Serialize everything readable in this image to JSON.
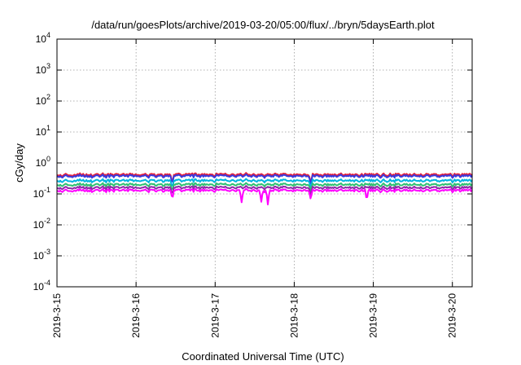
{
  "chart_data": {
    "type": "line",
    "title": "/data/run/goesPlots/archive/2019-03-20/05:00/flux/../bryn/5daysEarth.plot",
    "xlabel": "Coordinated Universal Time (UTC)",
    "ylabel": "cGy/day",
    "y_scale": "log",
    "ylim": [
      0.0001,
      10000
    ],
    "y_ticks": [
      {
        "base": "10",
        "exp": "-4",
        "value": 0.0001
      },
      {
        "base": "10",
        "exp": "-3",
        "value": 0.001
      },
      {
        "base": "10",
        "exp": "-2",
        "value": 0.01
      },
      {
        "base": "10",
        "exp": "-1",
        "value": 0.1
      },
      {
        "base": "10",
        "exp": "0",
        "value": 1
      },
      {
        "base": "10",
        "exp": "1",
        "value": 10
      },
      {
        "base": "10",
        "exp": "2",
        "value": 100
      },
      {
        "base": "10",
        "exp": "3",
        "value": 1000
      },
      {
        "base": "10",
        "exp": "4",
        "value": 10000
      }
    ],
    "xlim": [
      "2019-03-15T00:00",
      "2019-03-20T06:00"
    ],
    "x_ticks": [
      "2019-3-15",
      "2019-3-16",
      "2019-3-17",
      "2019-3-18",
      "2019-3-19",
      "2019-3-20"
    ],
    "grid": true,
    "legend": "none",
    "series": [
      {
        "color": "#e8213a",
        "level": 0.42,
        "dips": [
          {
            "at": "2019-03-16T11:00",
            "to": 0.22
          },
          {
            "at": "2019-03-18T05:00",
            "to": 0.22
          }
        ]
      },
      {
        "color": "#3a3adc",
        "level": 0.38,
        "dips": [
          {
            "at": "2019-03-16T11:00",
            "to": 0.2
          },
          {
            "at": "2019-03-18T05:00",
            "to": 0.2
          }
        ]
      },
      {
        "color": "#00b4e0",
        "level": 0.27,
        "dips": [
          {
            "at": "2019-03-16T11:00",
            "to": 0.15
          },
          {
            "at": "2019-03-18T05:00",
            "to": 0.15
          }
        ]
      },
      {
        "color": "#2fbf71",
        "level": 0.2,
        "dips": [
          {
            "at": "2019-03-16T11:00",
            "to": 0.12
          },
          {
            "at": "2019-03-18T05:00",
            "to": 0.12
          }
        ]
      },
      {
        "color": "#8e2aa8",
        "level": 0.16,
        "dips": [
          {
            "at": "2019-03-16T11:00",
            "to": 0.09
          },
          {
            "at": "2019-03-18T05:00",
            "to": 0.09
          }
        ]
      },
      {
        "color": "#ff00ff",
        "level": 0.13,
        "dips": [
          {
            "at": "2019-03-16T11:00",
            "to": 0.065
          },
          {
            "at": "2019-03-17T08:00",
            "to": 0.05
          },
          {
            "at": "2019-03-17T14:00",
            "to": 0.055
          },
          {
            "at": "2019-03-17T16:00",
            "to": 0.045
          },
          {
            "at": "2019-03-18T05:00",
            "to": 0.065
          },
          {
            "at": "2019-03-18T22:00",
            "to": 0.06
          }
        ]
      }
    ]
  }
}
